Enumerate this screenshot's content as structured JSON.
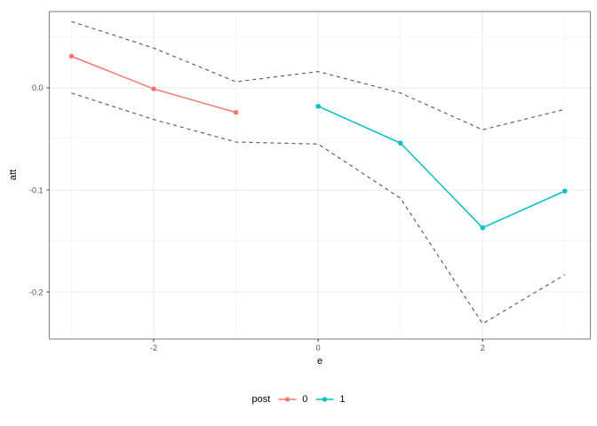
{
  "chart_data": {
    "type": "line",
    "title": "",
    "xlabel": "e",
    "ylabel": "att",
    "xlim": [
      -3.27,
      3.31
    ],
    "ylim": [
      -0.246,
      0.0748
    ],
    "grid": true,
    "legend_position": "bottom",
    "x_major_ticks": [
      -2,
      0,
      2
    ],
    "x_minor_ticks": [
      -3,
      -1,
      1,
      3
    ],
    "y_major_ticks": [
      0.0,
      -0.1,
      -0.2
    ],
    "y_minor_ticks": [
      0.05,
      -0.05,
      -0.15
    ],
    "x_tick_labels": [
      "-2",
      "0",
      "2"
    ],
    "y_tick_labels": [
      "0.0",
      "-0.1",
      "-0.2"
    ],
    "series": [
      {
        "id": "ci-upper",
        "name": "confidence band upper",
        "role": "ci",
        "color": "#636363",
        "dashed": true,
        "marker": false,
        "x": [
          -3,
          -2,
          -1,
          0,
          1,
          2,
          3
        ],
        "y": [
          0.065,
          0.039,
          0.006,
          0.016,
          -0.005,
          -0.041,
          -0.021
        ]
      },
      {
        "id": "ci-lower",
        "name": "confidence band lower",
        "role": "ci",
        "color": "#636363",
        "dashed": true,
        "marker": false,
        "x": [
          -3,
          -2,
          -1,
          0,
          1,
          2,
          3
        ],
        "y": [
          -0.005,
          -0.031,
          -0.053,
          -0.055,
          -0.108,
          -0.231,
          -0.183
        ]
      },
      {
        "id": "post-0",
        "name": "0",
        "role": "estimate",
        "color": "#F8766D",
        "dashed": false,
        "marker": true,
        "x": [
          -3,
          -2,
          -1
        ],
        "y": [
          0.031,
          -0.001,
          -0.024
        ]
      },
      {
        "id": "post-1",
        "name": "1",
        "role": "estimate",
        "color": "#00BFC4",
        "dashed": false,
        "marker": true,
        "x": [
          0,
          1,
          2,
          3
        ],
        "y": [
          -0.018,
          -0.054,
          -0.137,
          -0.101
        ]
      }
    ],
    "style": {
      "background": "#ffffff",
      "grid_major_color": "#ebebeb",
      "grid_minor_color": "#f5f5f5",
      "panel_border_color": "#858585",
      "tick_color": "#333333",
      "tick_label_color": "#4d4d4d",
      "ci_dash_color": "#636363"
    }
  },
  "legend": {
    "title": "post",
    "items": [
      {
        "label": "0",
        "color": "#F8766D"
      },
      {
        "label": "1",
        "color": "#00BFC4"
      }
    ]
  }
}
